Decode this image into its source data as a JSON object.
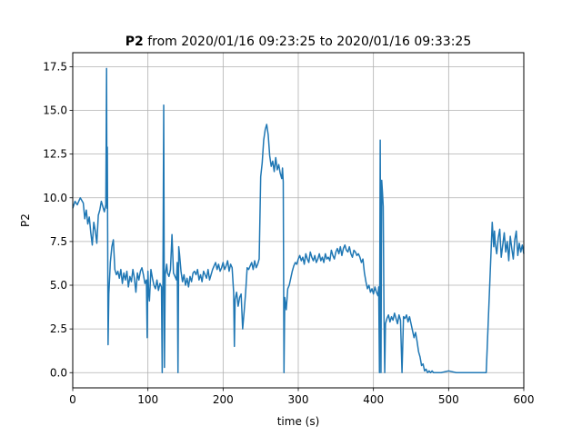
{
  "chart_data": {
    "type": "line",
    "title_bold": "P2",
    "title_rest": " from 2020/01/16 09:23:25 to 2020/01/16 09:33:25",
    "xlabel": "time (s)",
    "ylabel": "P2",
    "xlim": [
      0,
      600
    ],
    "ylim": [
      -0.87,
      18.3
    ],
    "xticks": [
      0,
      100,
      200,
      300,
      400,
      500,
      600
    ],
    "yticks": [
      0.0,
      2.5,
      5.0,
      7.5,
      10.0,
      12.5,
      15.0,
      17.5
    ],
    "xtick_labels": [
      "0",
      "100",
      "200",
      "300",
      "400",
      "500",
      "600"
    ],
    "ytick_labels": [
      "0.0",
      "2.5",
      "5.0",
      "7.5",
      "10.0",
      "12.5",
      "15.0",
      "17.5"
    ],
    "grid": true,
    "series": [
      {
        "color": "#1f77b4",
        "x": [
          0,
          3,
          6,
          10,
          14,
          16,
          18,
          20,
          22,
          24,
          26,
          28,
          30,
          32,
          34,
          36,
          38,
          40,
          42,
          44,
          45,
          45.5,
          46,
          47,
          48,
          49,
          50,
          52,
          54,
          56,
          58,
          60,
          62,
          64,
          66,
          68,
          70,
          72,
          74,
          76,
          78,
          80,
          82,
          84,
          86,
          88,
          90,
          92,
          94,
          96,
          98,
          99,
          100,
          101,
          102,
          104,
          106,
          108,
          110,
          112,
          114,
          116,
          118,
          119,
          120,
          121,
          122,
          123,
          124,
          125,
          126,
          128,
          130,
          132,
          134,
          136,
          138,
          139,
          140,
          141,
          142,
          144,
          146,
          148,
          150,
          152,
          154,
          156,
          158,
          160,
          162,
          164,
          166,
          168,
          170,
          172,
          174,
          176,
          178,
          180,
          182,
          184,
          186,
          188,
          190,
          192,
          194,
          196,
          198,
          200,
          202,
          204,
          206,
          208,
          210,
          212,
          214,
          215,
          216,
          218,
          220,
          222,
          224,
          226,
          228,
          230,
          232,
          234,
          236,
          238,
          240,
          242,
          244,
          246,
          248,
          250,
          252,
          254,
          256,
          258,
          260,
          262,
          264,
          266,
          268,
          270,
          272,
          274,
          276,
          278,
          279,
          280,
          281,
          282,
          284,
          286,
          288,
          290,
          292,
          294,
          296,
          298,
          300,
          302,
          304,
          306,
          308,
          310,
          312,
          314,
          316,
          318,
          320,
          322,
          324,
          326,
          328,
          330,
          332,
          334,
          336,
          338,
          340,
          342,
          344,
          346,
          348,
          350,
          352,
          354,
          356,
          358,
          360,
          362,
          364,
          366,
          368,
          370,
          372,
          374,
          376,
          378,
          380,
          382,
          384,
          386,
          388,
          390,
          392,
          394,
          396,
          398,
          400,
          402,
          404,
          406,
          407,
          408,
          409,
          410,
          411,
          412,
          413,
          414,
          415,
          416,
          418,
          420,
          422,
          424,
          426,
          428,
          430,
          432,
          434,
          436,
          438,
          440,
          442,
          444,
          446,
          448,
          450,
          452,
          454,
          456,
          458,
          460,
          462,
          464,
          466,
          468,
          470,
          472,
          474,
          476,
          478,
          480,
          482,
          485,
          490,
          500,
          510,
          512,
          514,
          520,
          530,
          540,
          550,
          558,
          559,
          560,
          561,
          562,
          564,
          566,
          568,
          570,
          572,
          574,
          576,
          578,
          580,
          582,
          584,
          586,
          588,
          590,
          592,
          594,
          596,
          598,
          600
        ],
        "y": [
          9.4,
          9.8,
          9.6,
          10.0,
          9.7,
          8.8,
          9.3,
          8.5,
          8.9,
          8.0,
          7.3,
          8.6,
          8.1,
          7.4,
          9.0,
          9.3,
          9.8,
          9.5,
          9.2,
          9.6,
          17.4,
          9.4,
          12.9,
          1.6,
          4.5,
          5.4,
          6.3,
          7.2,
          7.6,
          5.9,
          5.6,
          5.8,
          5.4,
          5.9,
          5.1,
          5.7,
          5.3,
          5.8,
          4.9,
          5.5,
          5.2,
          5.9,
          5.4,
          4.6,
          5.7,
          5.3,
          5.8,
          6.0,
          5.6,
          5.1,
          5.3,
          2.0,
          5.8,
          4.6,
          4.1,
          5.9,
          5.4,
          5.0,
          4.8,
          5.3,
          4.7,
          5.1,
          4.9,
          0.0,
          5.4,
          15.3,
          0.3,
          5.6,
          5.9,
          6.2,
          5.7,
          5.5,
          5.9,
          7.9,
          5.7,
          5.5,
          5.3,
          6.3,
          0.0,
          7.2,
          6.8,
          5.8,
          5.2,
          5.6,
          5.0,
          5.4,
          4.9,
          5.5,
          5.2,
          5.7,
          5.8,
          5.6,
          5.9,
          5.3,
          5.6,
          5.2,
          5.8,
          5.6,
          5.4,
          5.9,
          5.3,
          5.6,
          5.9,
          6.1,
          6.3,
          5.9,
          6.2,
          5.8,
          6.0,
          6.3,
          5.9,
          6.1,
          6.4,
          5.8,
          6.2,
          6.0,
          4.6,
          1.5,
          4.2,
          4.6,
          3.8,
          4.3,
          4.5,
          2.5,
          3.5,
          4.6,
          6.0,
          5.9,
          6.1,
          6.3,
          5.9,
          6.4,
          6.0,
          6.2,
          6.5,
          11.2,
          12.0,
          13.3,
          13.9,
          14.2,
          13.6,
          12.4,
          11.8,
          12.1,
          11.5,
          12.3,
          11.6,
          11.9,
          11.4,
          11.1,
          11.7,
          10.9,
          0.0,
          4.3,
          3.6,
          4.8,
          5.0,
          5.4,
          5.8,
          6.1,
          6.3,
          6.2,
          6.5,
          6.7,
          6.4,
          6.6,
          6.2,
          6.8,
          6.5,
          6.3,
          6.9,
          6.6,
          6.4,
          6.7,
          6.3,
          6.5,
          6.8,
          6.4,
          6.6,
          6.3,
          6.8,
          6.5,
          6.6,
          6.4,
          7.0,
          6.7,
          6.5,
          6.9,
          7.1,
          6.8,
          7.2,
          6.7,
          7.1,
          7.3,
          7.0,
          6.9,
          7.2,
          6.8,
          6.6,
          7.0,
          6.9,
          6.7,
          6.8,
          6.6,
          6.3,
          6.5,
          5.7,
          5.2,
          4.8,
          5.0,
          4.6,
          4.8,
          4.5,
          4.9,
          4.6,
          4.4,
          4.9,
          0.0,
          13.3,
          0.0,
          11.0,
          10.3,
          9.5,
          3.5,
          0.0,
          2.8,
          3.1,
          3.3,
          2.9,
          3.2,
          3.0,
          3.4,
          3.1,
          2.8,
          3.3,
          3.0,
          0.0,
          3.2,
          3.1,
          3.3,
          2.9,
          3.2,
          2.8,
          2.4,
          2.0,
          2.3,
          1.8,
          1.2,
          0.9,
          0.4,
          0.5,
          0.1,
          0.2,
          0.0,
          0.1,
          0.0,
          0.1,
          0.0,
          0.0,
          0.0,
          0.0,
          0.1,
          0.0,
          0.0,
          0.0,
          0.0,
          0.0,
          0.0,
          0.0,
          8.6,
          7.9,
          7.2,
          8.1,
          7.4,
          6.8,
          7.7,
          8.2,
          6.6,
          7.3,
          8.0,
          6.9,
          7.5,
          6.4,
          7.8,
          7.1,
          6.5,
          7.6,
          8.1,
          6.7,
          7.4,
          6.9,
          7.3,
          6.8
        ]
      }
    ]
  }
}
